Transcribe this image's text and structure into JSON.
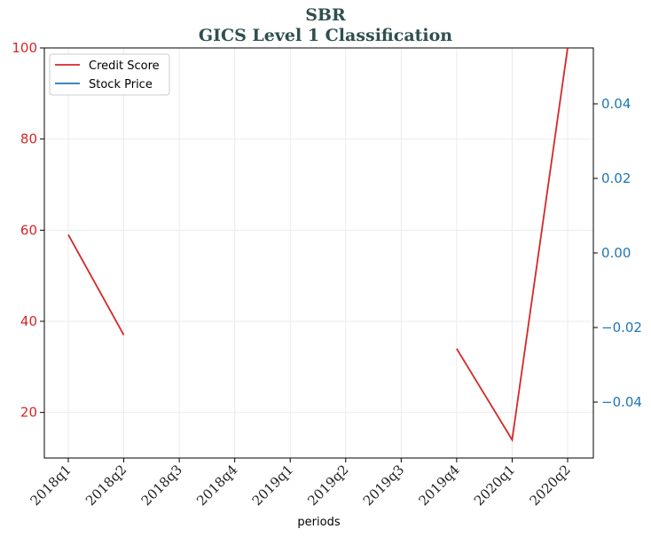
{
  "chart_data": {
    "type": "line",
    "title": "SBR",
    "subtitle": "GICS Level 1 Classification",
    "xlabel": "periods",
    "categories": [
      "2018q1",
      "2018q2",
      "2018q3",
      "2018q4",
      "2019q1",
      "2019q2",
      "2019q3",
      "2019q4",
      "2020q1",
      "2020q2"
    ],
    "series": [
      {
        "name": "Credit Score",
        "axis": "left",
        "color": "#d62728",
        "values": [
          59,
          37,
          null,
          null,
          null,
          null,
          null,
          34,
          14,
          100
        ]
      },
      {
        "name": "Stock Price",
        "axis": "right",
        "color": "#1f77b4",
        "values": [
          null,
          null,
          null,
          null,
          null,
          null,
          null,
          null,
          null,
          null
        ]
      }
    ],
    "ylim_left": [
      10,
      100
    ],
    "yticks_left": [
      20,
      40,
      60,
      80,
      100
    ],
    "ylim_right": [
      -0.055,
      0.055
    ],
    "yticks_right": [
      0.04,
      0.02,
      0.0,
      -0.02,
      -0.04
    ],
    "yticks_right_labels": [
      "0.04",
      "0.02",
      "0.00",
      "−0.02",
      "−0.04"
    ],
    "grid": true,
    "legend_position": "top-left"
  }
}
